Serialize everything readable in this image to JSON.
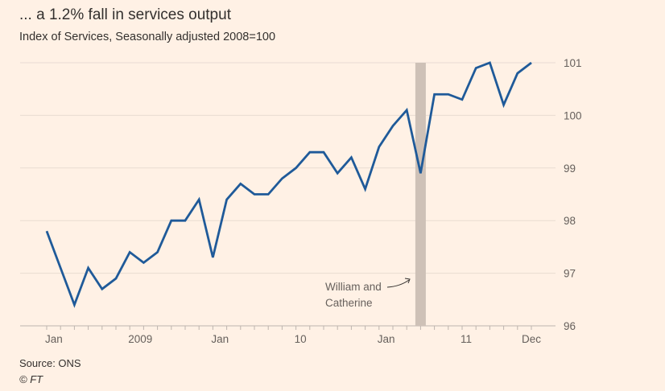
{
  "title": "... a 1.2% fall in services output",
  "subtitle": "Index of Services, Seasonally adjusted 2008=100",
  "source": "Source: ONS",
  "copyright": "© FT",
  "chart_data": {
    "type": "line",
    "title": "... a 1.2% fall in services output",
    "subtitle": "Index of Services, Seasonally adjusted 2008=100",
    "x": [
      "2009-01",
      "2009-02",
      "2009-03",
      "2009-04",
      "2009-05",
      "2009-06",
      "2009-07",
      "2009-08",
      "2009-09",
      "2009-10",
      "2009-11",
      "2009-12",
      "2010-01",
      "2010-02",
      "2010-03",
      "2010-04",
      "2010-05",
      "2010-06",
      "2010-07",
      "2010-08",
      "2010-09",
      "2010-10",
      "2010-11",
      "2010-12",
      "2011-01",
      "2011-02",
      "2011-03",
      "2011-04",
      "2011-05",
      "2011-06",
      "2011-07",
      "2011-08",
      "2011-09",
      "2011-10",
      "2011-11",
      "2011-12"
    ],
    "series": [
      {
        "values": [
          97.8,
          97.1,
          96.4,
          97.1,
          96.7,
          96.9,
          97.4,
          97.2,
          97.4,
          98.0,
          98.0,
          98.4,
          97.3,
          98.4,
          98.7,
          98.5,
          98.5,
          98.8,
          99.0,
          99.3,
          99.3,
          98.9,
          99.2,
          98.6,
          99.4,
          99.8,
          100.1,
          98.9,
          100.4,
          100.4,
          100.3,
          100.9,
          101.0,
          100.2,
          100.8,
          101.0
        ],
        "color": "#1f5a99"
      }
    ],
    "x_tick_labels": [
      {
        "index": 0,
        "label": "Jan"
      },
      {
        "index": 6,
        "label": "2009"
      },
      {
        "index": 12,
        "label": "Jan"
      },
      {
        "index": 18,
        "label": "10"
      },
      {
        "index": 24,
        "label": "Jan"
      },
      {
        "index": 30,
        "label": "11"
      },
      {
        "index": 35,
        "label": "Dec"
      }
    ],
    "y_ticks": [
      96,
      97,
      98,
      99,
      100,
      101
    ],
    "ylim": [
      96,
      101
    ],
    "y_axis_side": "right",
    "grid": true,
    "highlight": {
      "index": 27,
      "color": "#cec1b7",
      "annotation": [
        "William and",
        "Catherine"
      ]
    }
  }
}
